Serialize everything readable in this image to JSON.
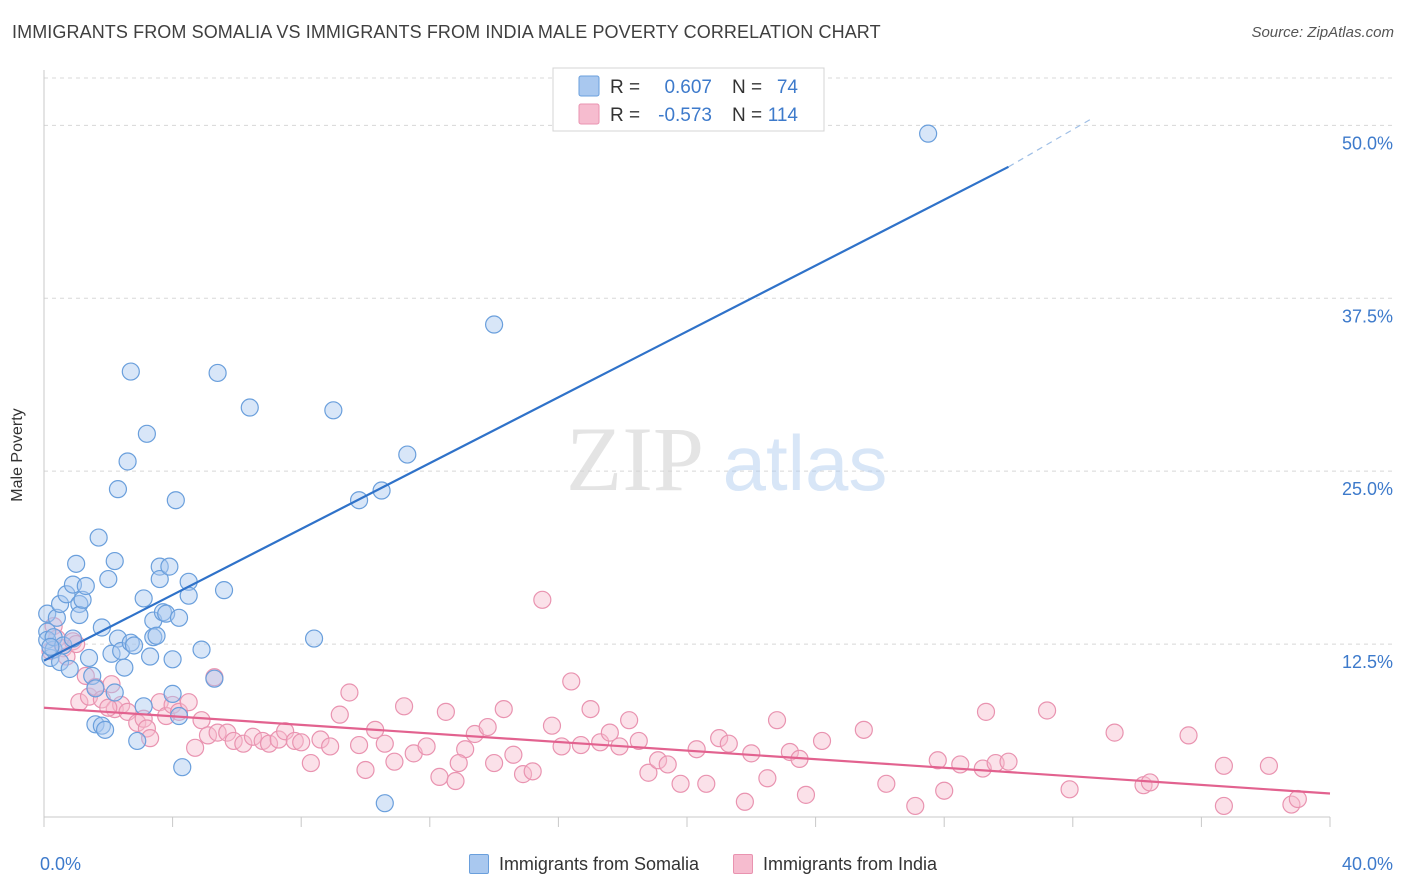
{
  "header": {
    "title": "IMMIGRANTS FROM SOMALIA VS IMMIGRANTS FROM INDIA MALE POVERTY CORRELATION CHART",
    "source": "Source: ZipAtlas.com"
  },
  "watermark": {
    "zip": "ZIP",
    "atlas": "atlas"
  },
  "colors": {
    "blue_fill": "#a9c8ef",
    "blue_stroke": "#6a9fdc",
    "blue_line": "#2f72c9",
    "pink_fill": "#f6bccf",
    "pink_stroke": "#e993b0",
    "pink_line": "#e2628f",
    "axis_text": "#3d7acb",
    "grid": "#d8d8d8"
  },
  "chart_data": {
    "type": "scatter",
    "title": "IMMIGRANTS FROM SOMALIA VS IMMIGRANTS FROM INDIA MALE POVERTY CORRELATION CHART",
    "xlabel": "",
    "ylabel": "Male Poverty",
    "xlim": [
      0,
      40
    ],
    "ylim": [
      0,
      54
    ],
    "x_tick_labels": [
      {
        "value": 0,
        "label": "0.0%"
      },
      {
        "value": 40,
        "label": "40.0%"
      }
    ],
    "y_ticks": [
      {
        "value": 12.5,
        "label": "12.5%"
      },
      {
        "value": 25.0,
        "label": "25.0%"
      },
      {
        "value": 37.5,
        "label": "37.5%"
      },
      {
        "value": 50.0,
        "label": "50.0%"
      }
    ],
    "legend": {
      "position": "top-center",
      "entries": [
        {
          "r_label": "R =",
          "r_value": "0.607",
          "n_label": "N =",
          "n_value": "74"
        },
        {
          "r_label": "R =",
          "r_value": "-0.573",
          "n_label": "N =",
          "n_value": "114"
        }
      ]
    },
    "series": [
      {
        "name": "Immigrants from Somalia",
        "color": "#a9c8ef",
        "trend": {
          "x0": 0,
          "y0": 11.3,
          "x1": 30,
          "y1": 47.0,
          "dash_to_x": 32.6,
          "dash_to_y": 50.5
        },
        "points": [
          [
            0.1,
            14.7
          ],
          [
            0.1,
            13.4
          ],
          [
            0.1,
            12.8
          ],
          [
            0.2,
            11.5
          ],
          [
            0.3,
            12.1
          ],
          [
            0.3,
            13.0
          ],
          [
            0.4,
            14.4
          ],
          [
            0.5,
            15.4
          ],
          [
            0.5,
            11.2
          ],
          [
            0.6,
            12.4
          ],
          [
            0.7,
            16.1
          ],
          [
            0.8,
            10.7
          ],
          [
            0.9,
            12.9
          ],
          [
            0.9,
            16.8
          ],
          [
            1.0,
            18.3
          ],
          [
            1.1,
            15.4
          ],
          [
            1.1,
            14.6
          ],
          [
            1.2,
            15.7
          ],
          [
            1.3,
            16.7
          ],
          [
            1.4,
            11.5
          ],
          [
            1.5,
            10.2
          ],
          [
            1.6,
            9.3
          ],
          [
            1.6,
            6.7
          ],
          [
            1.7,
            20.2
          ],
          [
            1.8,
            13.7
          ],
          [
            1.8,
            6.6
          ],
          [
            1.9,
            6.3
          ],
          [
            2.0,
            17.2
          ],
          [
            2.1,
            11.8
          ],
          [
            2.2,
            9.0
          ],
          [
            2.2,
            18.5
          ],
          [
            2.3,
            12.9
          ],
          [
            2.3,
            23.7
          ],
          [
            2.4,
            12.0
          ],
          [
            2.5,
            10.8
          ],
          [
            2.6,
            25.7
          ],
          [
            2.7,
            12.6
          ],
          [
            2.7,
            32.2
          ],
          [
            2.8,
            12.4
          ],
          [
            2.9,
            5.5
          ],
          [
            3.1,
            8.0
          ],
          [
            3.1,
            15.8
          ],
          [
            3.2,
            27.7
          ],
          [
            3.3,
            11.6
          ],
          [
            3.4,
            13.0
          ],
          [
            3.4,
            14.2
          ],
          [
            3.5,
            13.1
          ],
          [
            3.6,
            18.1
          ],
          [
            3.6,
            17.2
          ],
          [
            3.7,
            14.8
          ],
          [
            3.8,
            14.7
          ],
          [
            3.9,
            18.1
          ],
          [
            4.0,
            8.9
          ],
          [
            4.0,
            11.4
          ],
          [
            4.1,
            22.9
          ],
          [
            4.2,
            14.4
          ],
          [
            4.2,
            7.3
          ],
          [
            4.3,
            3.6
          ],
          [
            4.5,
            17.0
          ],
          [
            4.5,
            16.0
          ],
          [
            4.9,
            12.1
          ],
          [
            5.3,
            10.0
          ],
          [
            5.4,
            32.1
          ],
          [
            5.6,
            16.4
          ],
          [
            6.4,
            29.6
          ],
          [
            8.4,
            12.9
          ],
          [
            9.0,
            29.4
          ],
          [
            9.8,
            22.9
          ],
          [
            10.5,
            23.6
          ],
          [
            10.6,
            1.0
          ],
          [
            11.3,
            26.2
          ],
          [
            14.0,
            35.6
          ],
          [
            27.5,
            49.4
          ],
          [
            0.2,
            12.3
          ]
        ]
      },
      {
        "name": "Immigrants from India",
        "color": "#f6bccf",
        "trend": {
          "x0": 0,
          "y0": 7.9,
          "x1": 40,
          "y1": 1.7
        },
        "points": [
          [
            0.2,
            12.0
          ],
          [
            0.3,
            13.8
          ],
          [
            0.4,
            12.9
          ],
          [
            0.6,
            12.2
          ],
          [
            0.7,
            11.6
          ],
          [
            0.9,
            12.7
          ],
          [
            1.0,
            12.5
          ],
          [
            1.1,
            8.3
          ],
          [
            1.3,
            10.2
          ],
          [
            1.4,
            8.7
          ],
          [
            1.6,
            9.4
          ],
          [
            1.8,
            8.5
          ],
          [
            2.1,
            9.6
          ],
          [
            2.2,
            7.8
          ],
          [
            2.4,
            8.1
          ],
          [
            2.6,
            7.6
          ],
          [
            2.9,
            6.8
          ],
          [
            3.1,
            7.1
          ],
          [
            3.2,
            6.4
          ],
          [
            3.3,
            5.7
          ],
          [
            3.6,
            8.3
          ],
          [
            3.8,
            7.3
          ],
          [
            4.0,
            8.1
          ],
          [
            4.2,
            7.6
          ],
          [
            4.5,
            8.3
          ],
          [
            4.7,
            5.0
          ],
          [
            4.9,
            7.0
          ],
          [
            5.1,
            5.9
          ],
          [
            5.3,
            10.1
          ],
          [
            5.4,
            6.1
          ],
          [
            5.7,
            6.1
          ],
          [
            5.9,
            5.5
          ],
          [
            6.2,
            5.3
          ],
          [
            6.5,
            5.8
          ],
          [
            6.8,
            5.5
          ],
          [
            7.0,
            5.3
          ],
          [
            7.3,
            5.6
          ],
          [
            7.5,
            6.2
          ],
          [
            7.8,
            5.5
          ],
          [
            8.0,
            5.4
          ],
          [
            8.3,
            3.9
          ],
          [
            8.6,
            5.6
          ],
          [
            8.9,
            5.1
          ],
          [
            9.2,
            7.4
          ],
          [
            9.5,
            9.0
          ],
          [
            9.8,
            5.2
          ],
          [
            10.0,
            3.4
          ],
          [
            10.3,
            6.3
          ],
          [
            10.6,
            5.3
          ],
          [
            10.9,
            4.0
          ],
          [
            11.2,
            8.0
          ],
          [
            11.5,
            4.6
          ],
          [
            11.9,
            5.1
          ],
          [
            12.3,
            2.9
          ],
          [
            12.5,
            7.6
          ],
          [
            12.8,
            2.6
          ],
          [
            13.1,
            4.9
          ],
          [
            13.4,
            6.0
          ],
          [
            13.8,
            6.5
          ],
          [
            14.0,
            3.9
          ],
          [
            14.3,
            7.8
          ],
          [
            14.6,
            4.5
          ],
          [
            14.9,
            3.1
          ],
          [
            15.2,
            3.3
          ],
          [
            15.5,
            15.7
          ],
          [
            15.8,
            6.6
          ],
          [
            16.1,
            5.1
          ],
          [
            16.4,
            9.8
          ],
          [
            16.7,
            5.2
          ],
          [
            17.0,
            7.8
          ],
          [
            17.3,
            5.4
          ],
          [
            17.6,
            6.1
          ],
          [
            17.9,
            5.1
          ],
          [
            18.2,
            7.0
          ],
          [
            18.5,
            5.5
          ],
          [
            18.8,
            3.2
          ],
          [
            19.1,
            4.1
          ],
          [
            19.4,
            3.8
          ],
          [
            19.8,
            2.4
          ],
          [
            20.3,
            4.9
          ],
          [
            20.6,
            2.4
          ],
          [
            21.0,
            5.7
          ],
          [
            21.3,
            5.3
          ],
          [
            21.8,
            1.1
          ],
          [
            22.0,
            4.6
          ],
          [
            22.5,
            2.8
          ],
          [
            22.8,
            7.0
          ],
          [
            23.2,
            4.7
          ],
          [
            23.5,
            4.2
          ],
          [
            23.7,
            1.6
          ],
          [
            24.2,
            5.5
          ],
          [
            25.5,
            6.3
          ],
          [
            26.2,
            2.4
          ],
          [
            27.8,
            4.1
          ],
          [
            28.0,
            1.9
          ],
          [
            28.5,
            3.8
          ],
          [
            29.2,
            3.5
          ],
          [
            29.6,
            3.9
          ],
          [
            30.0,
            4.0
          ],
          [
            31.9,
            2.0
          ],
          [
            33.3,
            6.1
          ],
          [
            34.2,
            2.3
          ],
          [
            34.4,
            2.5
          ],
          [
            35.6,
            5.9
          ],
          [
            36.7,
            3.7
          ],
          [
            36.7,
            0.8
          ],
          [
            38.8,
            0.9
          ],
          [
            39.0,
            1.3
          ],
          [
            2.0,
            7.9
          ],
          [
            12.9,
            3.9
          ],
          [
            27.1,
            0.8
          ],
          [
            31.2,
            7.7
          ],
          [
            38.1,
            3.7
          ],
          [
            29.3,
            7.6
          ]
        ]
      }
    ]
  },
  "bottom_legend": {
    "items": [
      "Immigrants from Somalia",
      "Immigrants from India"
    ]
  }
}
